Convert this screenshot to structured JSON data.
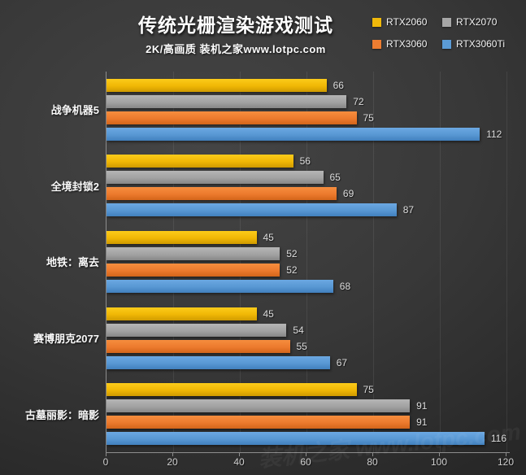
{
  "chart_data": {
    "type": "bar",
    "orientation": "horizontal",
    "title": "传统光栅渲染游戏测试",
    "subtitle": "2K/高画质 装机之家www.lotpc.com",
    "watermark": "装机之家 www.lotpc.com",
    "categories": [
      "战争机器5",
      "全境封锁2",
      "地铁：离去",
      "赛博朋克2077",
      "古墓丽影：暗影"
    ],
    "series": [
      {
        "name": "RTX2060",
        "color": "#f0b90b",
        "values": [
          66,
          56,
          45,
          45,
          75
        ]
      },
      {
        "name": "RTX2070",
        "color": "#a6a6a6",
        "values": [
          72,
          65,
          52,
          54,
          91
        ]
      },
      {
        "name": "RTX3060",
        "color": "#ed7d31",
        "values": [
          75,
          69,
          52,
          55,
          91
        ]
      },
      {
        "name": "RTX3060Ti",
        "color": "#5b9bd5",
        "values": [
          112,
          87,
          68,
          67,
          116
        ]
      }
    ],
    "xlabel": "",
    "ylabel": "",
    "xlim": [
      0,
      120
    ],
    "x_ticks": [
      0,
      20,
      40,
      60,
      80,
      100,
      120
    ],
    "grid": true,
    "legend_position": "top-right",
    "background": "#333333",
    "accent_colors": {
      "yellow": "#f0b90b",
      "gray": "#a6a6a6",
      "orange": "#ed7d31",
      "blue": "#5b9bd5"
    }
  }
}
